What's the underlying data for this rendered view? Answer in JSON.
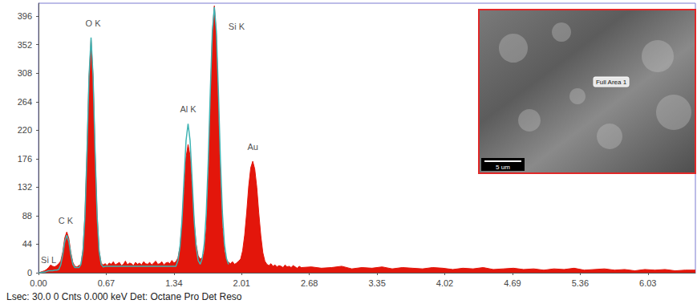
{
  "chart_data": {
    "type": "line",
    "x": [
      0,
      0.02,
      0.04,
      0.06,
      0.08,
      0.1,
      0.12,
      0.14,
      0.16,
      0.18,
      0.2,
      0.22,
      0.24,
      0.26,
      0.28,
      0.3,
      0.32,
      0.34,
      0.36,
      0.38,
      0.4,
      0.42,
      0.44,
      0.46,
      0.48,
      0.5,
      0.52,
      0.54,
      0.56,
      0.58,
      0.6,
      0.62,
      0.64,
      0.66,
      0.68,
      0.7,
      0.72,
      0.74,
      0.76,
      0.78,
      0.8,
      0.82,
      0.84,
      0.86,
      0.88,
      0.9,
      0.92,
      0.94,
      0.96,
      0.98,
      1,
      1.02,
      1.04,
      1.06,
      1.08,
      1.1,
      1.12,
      1.14,
      1.16,
      1.18,
      1.2,
      1.22,
      1.24,
      1.26,
      1.28,
      1.3,
      1.32,
      1.34,
      1.36,
      1.38,
      1.4,
      1.42,
      1.44,
      1.46,
      1.48,
      1.5,
      1.52,
      1.54,
      1.56,
      1.58,
      1.6,
      1.62,
      1.64,
      1.66,
      1.68,
      1.7,
      1.72,
      1.74,
      1.76,
      1.78,
      1.8,
      1.82,
      1.84,
      1.86,
      1.88,
      1.9,
      1.92,
      1.94,
      1.96,
      1.98,
      2,
      2.02,
      2.04,
      2.06,
      2.08,
      2.1,
      2.12,
      2.14,
      2.16,
      2.18,
      2.2,
      2.22,
      2.24,
      2.26,
      2.28,
      2.3,
      2.32,
      2.34,
      2.36,
      2.38,
      2.4,
      2.42,
      2.44,
      2.46,
      2.48,
      2.5,
      2.52,
      2.54,
      2.56,
      2.58,
      2.6,
      2.7,
      2.8,
      2.9,
      3,
      3.1,
      3.2,
      3.3,
      3.4,
      3.5,
      3.6,
      3.7,
      3.8,
      3.9,
      4,
      4.1,
      4.2,
      4.3,
      4.4,
      4.5,
      4.6,
      4.7,
      4.8,
      4.9,
      5,
      5.1,
      5.2,
      5.3,
      5.4,
      5.5,
      5.6,
      5.7,
      5.8,
      5.9,
      6,
      6.1,
      6.2,
      6.3,
      6.4,
      6.5
    ],
    "series": [
      {
        "type": "area",
        "color": "#e3160b",
        "values": [
          0,
          1,
          2,
          3,
          5,
          8,
          12,
          10,
          9,
          11,
          14,
          18,
          32,
          54,
          63,
          53,
          31,
          16,
          10,
          9,
          11,
          13,
          36,
          90,
          188,
          302,
          360,
          304,
          186,
          89,
          34,
          15,
          12,
          14,
          11,
          15,
          13,
          17,
          12,
          14,
          16,
          11,
          13,
          18,
          12,
          15,
          14,
          11,
          16,
          13,
          15,
          12,
          17,
          14,
          13,
          16,
          12,
          15,
          18,
          13,
          14,
          17,
          12,
          15,
          16,
          14,
          19,
          15,
          17,
          23,
          40,
          77,
          128,
          178,
          198,
          180,
          130,
          78,
          44,
          26,
          21,
          23,
          31,
          68,
          146,
          260,
          370,
          412,
          366,
          258,
          145,
          70,
          33,
          20,
          16,
          14,
          17,
          13,
          15,
          18,
          21,
          34,
          58,
          93,
          134,
          162,
          172,
          160,
          132,
          92,
          57,
          31,
          18,
          13,
          11,
          14,
          10,
          12,
          9,
          11,
          10,
          8,
          12,
          9,
          10,
          8,
          11,
          9,
          7,
          10,
          8,
          9,
          7,
          8,
          10,
          6,
          8,
          7,
          9,
          6,
          8,
          7,
          6,
          8,
          7,
          5,
          7,
          6,
          8,
          5,
          6,
          7,
          5,
          6,
          4,
          6,
          5,
          7,
          4,
          5,
          6,
          4,
          5,
          3,
          5,
          4,
          5,
          3,
          4,
          4
        ]
      },
      {
        "type": "line",
        "color": "#3fb3b3",
        "values": [
          0,
          0,
          1,
          1,
          2,
          3,
          3,
          3,
          4,
          4,
          5,
          12,
          28,
          48,
          58,
          48,
          28,
          13,
          8,
          8,
          8,
          13,
          33,
          88,
          188,
          303,
          363,
          303,
          188,
          88,
          33,
          13,
          9,
          10,
          10,
          10,
          10,
          10,
          10,
          10,
          10,
          10,
          10,
          10,
          10,
          10,
          10,
          10,
          10,
          10,
          10,
          10,
          10,
          10,
          10,
          10,
          10,
          10,
          10,
          10,
          10,
          10,
          10,
          10,
          10,
          10,
          10,
          10,
          10,
          19,
          40,
          81,
          144,
          204,
          230,
          204,
          144,
          81,
          40,
          19,
          13,
          22,
          44,
          92,
          174,
          280,
          372,
          410,
          372,
          280,
          174,
          92,
          44,
          22,
          13,
          null,
          null,
          null,
          null,
          null,
          null,
          null,
          null,
          null,
          null,
          null,
          null,
          null,
          null,
          null,
          null,
          null,
          null,
          null,
          null,
          null,
          null,
          null,
          null,
          null,
          null,
          null,
          null,
          null,
          null,
          null,
          null,
          null,
          null,
          null,
          null,
          null,
          null,
          null,
          null,
          null,
          null,
          null,
          null,
          null,
          null,
          null,
          null,
          null,
          null,
          null,
          null,
          null,
          null,
          null,
          null,
          null,
          null,
          null,
          null,
          null,
          null,
          null,
          null,
          null,
          null,
          null,
          null,
          null,
          null,
          null,
          null,
          null,
          null,
          null
        ]
      }
    ],
    "xlim": [
      0,
      6.5
    ],
    "xticks": [
      {
        "value": 0,
        "label": "0.00"
      },
      0.67,
      1.34,
      2.01,
      2.68,
      3.35,
      4.02,
      4.69,
      5.36,
      6.03
    ],
    "ylim": [
      0,
      416
    ],
    "yticks": [
      0,
      44,
      88,
      132,
      176,
      220,
      264,
      308,
      352,
      396
    ],
    "grid": false,
    "annotations": [
      {
        "text": "Si L",
        "x": 0.1,
        "y": 20
      },
      {
        "text": "C K",
        "x": 0.27,
        "y": 80
      },
      {
        "text": "O K",
        "x": 0.54,
        "y": 385
      },
      {
        "text": "Al K",
        "x": 1.48,
        "y": 252
      },
      {
        "text": "Si K",
        "x": 1.96,
        "y": 380
      },
      {
        "text": "Au",
        "x": 2.12,
        "y": 195
      }
    ],
    "footer": "Lsec: 30.0 0 Cnts 0.000 keV Det: Octane Pro Det Reso",
    "inset": {
      "label": "Full Area 1",
      "scale_bar": "5 um"
    }
  }
}
